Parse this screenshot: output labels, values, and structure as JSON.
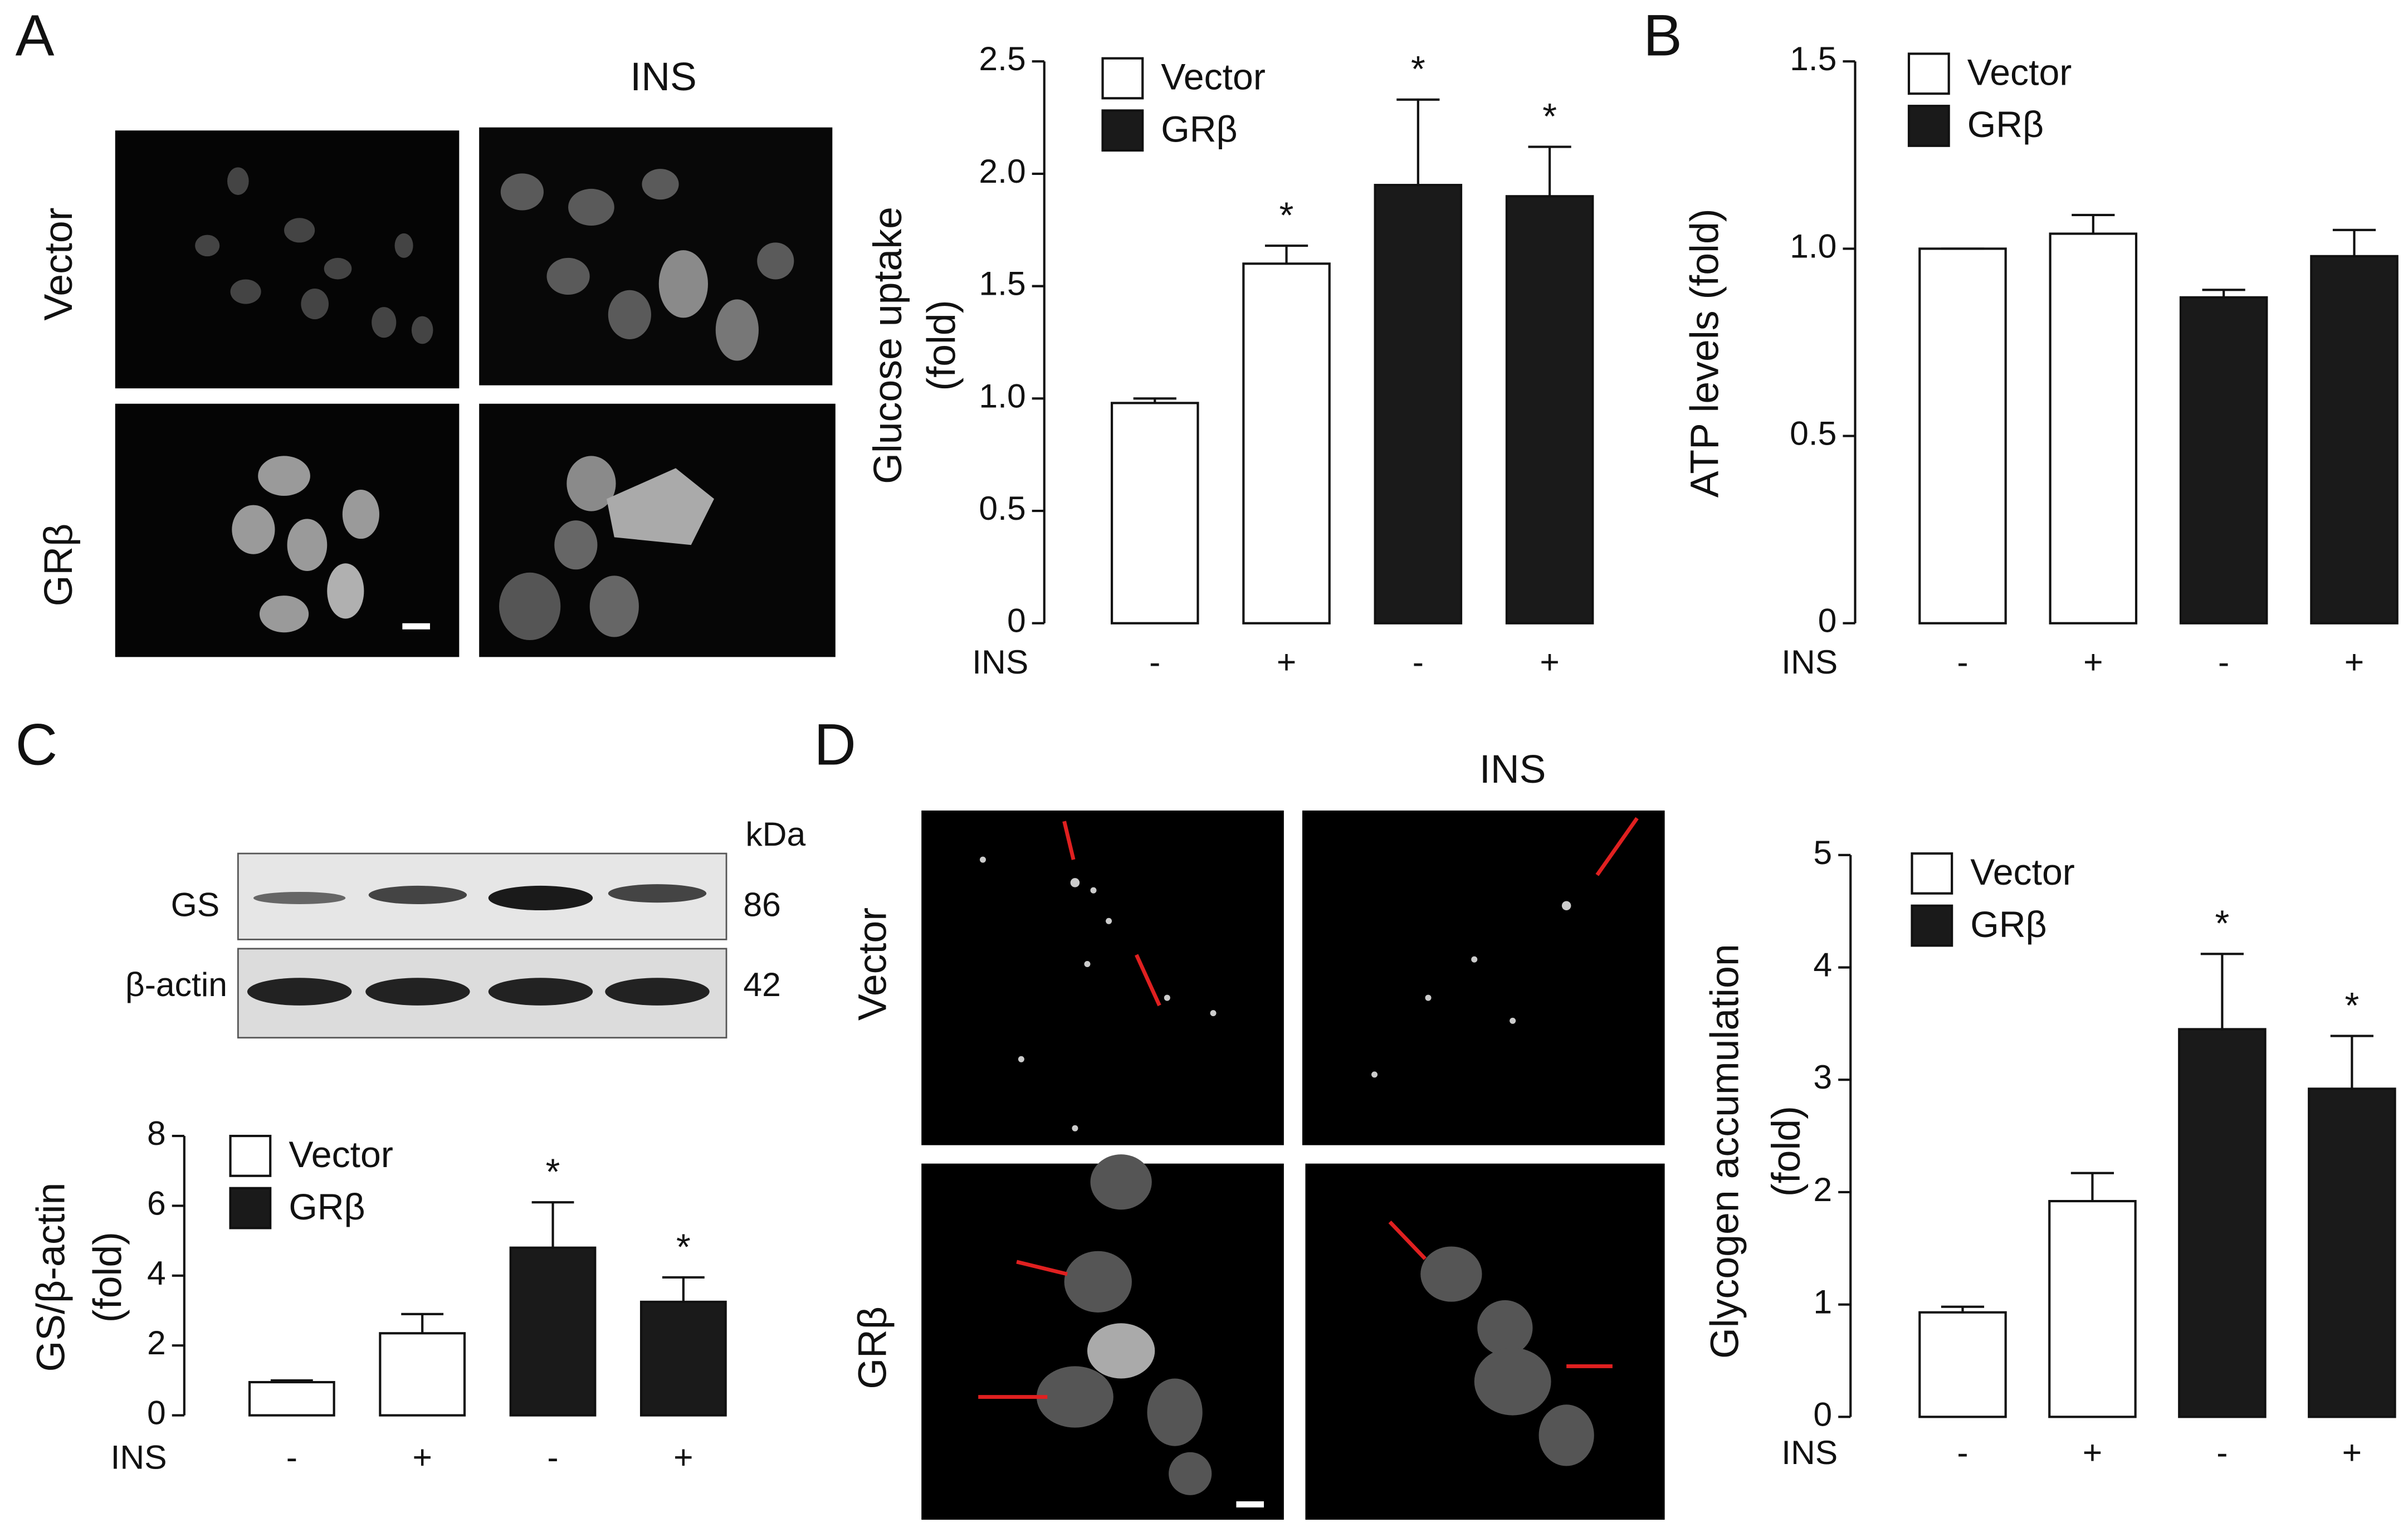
{
  "panel_labels": [
    "A",
    "B",
    "C",
    "D"
  ],
  "images": {
    "treatment_label": "INS",
    "row_labels": [
      "Vector",
      "GRβ"
    ]
  },
  "blot": {
    "unit": "kDa",
    "rows": [
      {
        "name": "GS",
        "kda": "86"
      },
      {
        "name": "β-actin",
        "kda": "42"
      }
    ]
  },
  "chart_data": [
    {
      "type": "bar",
      "ylabel_lines": [
        "Glucose uptake",
        "(fold)"
      ],
      "xlabel": "INS",
      "categories": [
        "-",
        "+",
        "-",
        "+"
      ],
      "series": [
        {
          "name": "Vector",
          "color": "#ffffff",
          "values": [
            0.98,
            1.6,
            null,
            null
          ],
          "errors": [
            0.02,
            0.08,
            null,
            null
          ]
        },
        {
          "name": "GRβ",
          "color": "#1a1a1a",
          "values": [
            null,
            null,
            1.95,
            1.9
          ],
          "errors": [
            null,
            null,
            0.38,
            0.22
          ]
        }
      ],
      "significance": [
        null,
        "*",
        "*",
        "*"
      ],
      "ylim": [
        0,
        2.5
      ],
      "yticks": [
        0,
        0.5,
        {
          "value": 1,
          "label": "1.0"
        },
        1.5,
        {
          "value": 2,
          "label": "2.0"
        },
        2.5
      ]
    },
    {
      "type": "bar",
      "ylabel_lines": [
        "ATP levels (fold)"
      ],
      "xlabel": "INS",
      "categories": [
        "-",
        "+",
        "-",
        "+"
      ],
      "series": [
        {
          "name": "Vector",
          "color": "#ffffff",
          "values": [
            1.0,
            1.04,
            null,
            null
          ],
          "errors": [
            0,
            0.05,
            null,
            null
          ]
        },
        {
          "name": "GRβ",
          "color": "#1a1a1a",
          "values": [
            null,
            null,
            0.87,
            0.98
          ],
          "errors": [
            null,
            null,
            0.02,
            0.07
          ]
        }
      ],
      "ylim": [
        0,
        1.5
      ],
      "yticks": [
        0,
        0.5,
        {
          "value": 1,
          "label": "1.0"
        },
        1.5
      ]
    },
    {
      "type": "bar",
      "ylabel_lines": [
        "GS/β-actin",
        "(fold)"
      ],
      "xlabel": "INS",
      "categories": [
        "-",
        "+",
        "-",
        "+"
      ],
      "series": [
        {
          "name": "Vector",
          "color": "#ffffff",
          "values": [
            0.95,
            2.35,
            null,
            null
          ],
          "errors": [
            0.05,
            0.55,
            null,
            null
          ]
        },
        {
          "name": "GRβ",
          "color": "#1a1a1a",
          "values": [
            null,
            null,
            4.8,
            3.25
          ],
          "errors": [
            null,
            null,
            1.3,
            0.7
          ]
        }
      ],
      "significance": [
        null,
        null,
        "*",
        "*"
      ],
      "ylim": [
        0,
        8
      ],
      "yticks": [
        0,
        2,
        4,
        6,
        8
      ]
    },
    {
      "type": "bar",
      "ylabel_lines": [
        "Glycogen accumulation",
        "(fold)"
      ],
      "xlabel": "INS",
      "categories": [
        "-",
        "+",
        "-",
        "+"
      ],
      "series": [
        {
          "name": "Vector",
          "color": "#ffffff",
          "values": [
            0.93,
            1.92,
            null,
            null
          ],
          "errors": [
            0.05,
            0.25,
            null,
            null
          ]
        },
        {
          "name": "GRβ",
          "color": "#1a1a1a",
          "values": [
            null,
            null,
            3.45,
            2.92
          ],
          "errors": [
            null,
            null,
            0.67,
            0.47
          ]
        }
      ],
      "significance": [
        null,
        null,
        "*",
        "*"
      ],
      "ylim": [
        0,
        5
      ],
      "yticks": [
        0,
        1,
        2,
        3,
        4,
        5
      ]
    }
  ]
}
